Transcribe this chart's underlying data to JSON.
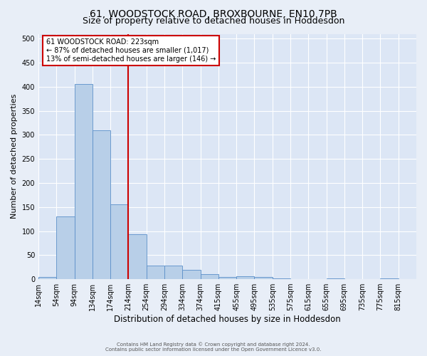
{
  "title": "61, WOODSTOCK ROAD, BROXBOURNE, EN10 7PB",
  "subtitle": "Size of property relative to detached houses in Hoddesdon",
  "xlabel": "Distribution of detached houses by size in Hoddesdon",
  "ylabel": "Number of detached properties",
  "footer_line1": "Contains HM Land Registry data © Crown copyright and database right 2024.",
  "footer_line2": "Contains public sector information licensed under the Open Government Licence v3.0.",
  "bin_labels": [
    "14sqm",
    "54sqm",
    "94sqm",
    "134sqm",
    "174sqm",
    "214sqm",
    "254sqm",
    "294sqm",
    "334sqm",
    "374sqm",
    "415sqm",
    "455sqm",
    "495sqm",
    "535sqm",
    "575sqm",
    "615sqm",
    "655sqm",
    "695sqm",
    "735sqm",
    "775sqm",
    "815sqm"
  ],
  "bar_values": [
    5,
    130,
    405,
    310,
    155,
    93,
    28,
    28,
    19,
    11,
    5,
    6,
    4,
    2,
    0,
    0,
    1,
    0,
    0,
    2,
    0
  ],
  "bar_color": "#b8cfe8",
  "bar_edge_color": "#5b8fc9",
  "red_line_label": "61 WOODSTOCK ROAD: 223sqm",
  "annotation_line2": "← 87% of detached houses are smaller (1,017)",
  "annotation_line3": "13% of semi-detached houses are larger (146) →",
  "ylim": [
    0,
    510
  ],
  "yticks": [
    0,
    50,
    100,
    150,
    200,
    250,
    300,
    350,
    400,
    450,
    500
  ],
  "bg_color": "#e8eef7",
  "plot_bg_color": "#dce6f5",
  "grid_color": "#ffffff",
  "title_fontsize": 10,
  "subtitle_fontsize": 9,
  "xlabel_fontsize": 8.5,
  "ylabel_fontsize": 8,
  "tick_fontsize": 7,
  "annotation_fontsize": 7,
  "footer_fontsize": 5,
  "annotation_box_color": "#ffffff",
  "annotation_box_edge_color": "#cc0000",
  "red_line_color": "#cc0000",
  "red_line_x": 5.0
}
